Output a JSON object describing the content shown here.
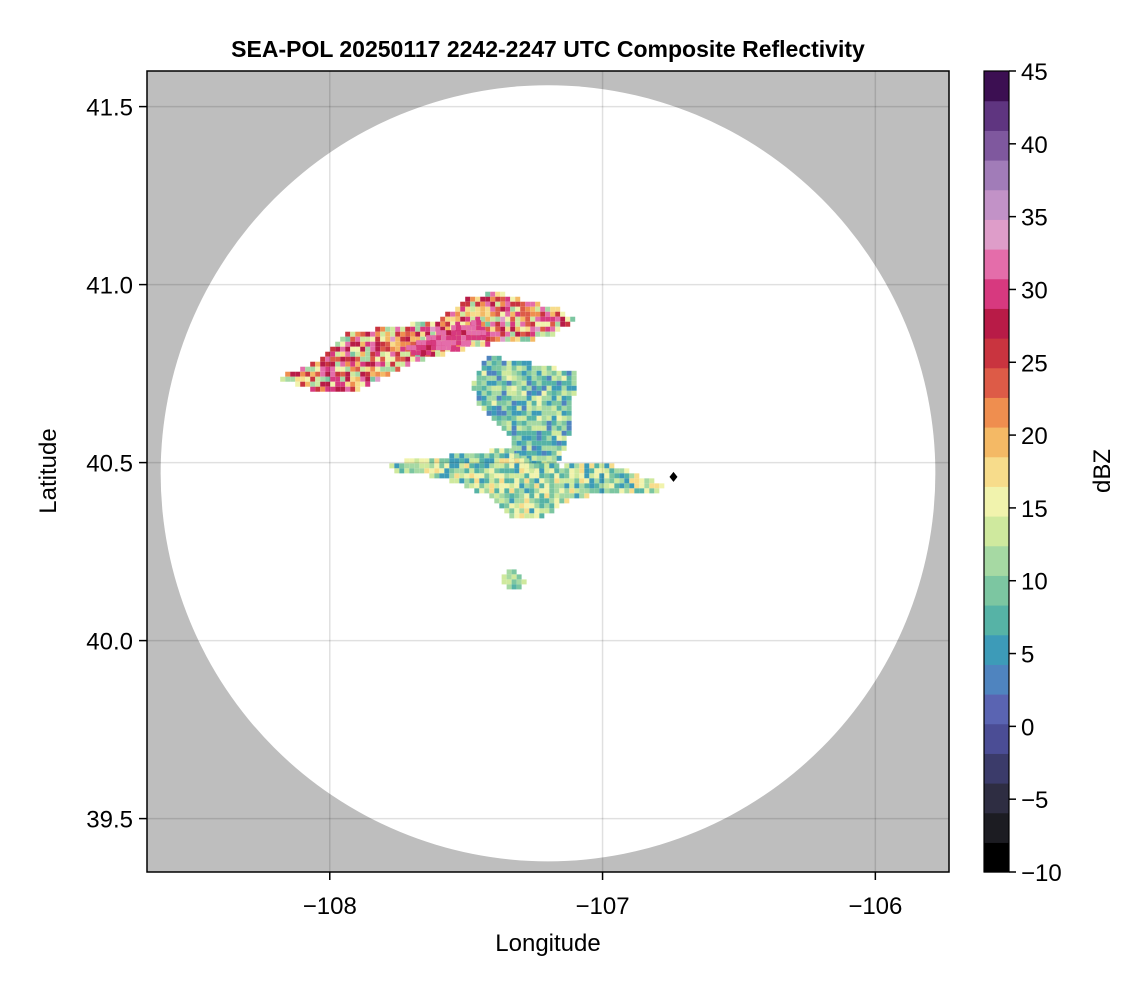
{
  "chart_data": {
    "type": "heatmap",
    "title": "SEA-POL 20250117 2242-2247 UTC Composite Reflectivity",
    "xlabel": "Longitude",
    "ylabel": "Latitude",
    "xlim": [
      -108.67,
      -105.73
    ],
    "ylim": [
      39.35,
      41.6
    ],
    "x_ticks": [
      -108,
      -107,
      -106
    ],
    "x_tick_labels": [
      "−108",
      "−107",
      "−106"
    ],
    "y_ticks": [
      39.5,
      40.0,
      40.5,
      41.0,
      41.5
    ],
    "y_tick_labels": [
      "39.5",
      "40.0",
      "40.5",
      "41.0",
      "41.5"
    ],
    "grid": true,
    "background_color": "#bebebe",
    "radar_coverage": {
      "center_lon": -107.2,
      "center_lat": 40.47,
      "radius_deg_lon": 1.42,
      "radius_deg_lat": 1.09,
      "fill": "#ffffff"
    },
    "radar_site": {
      "lon": -106.74,
      "lat": 40.46,
      "marker": "diamond",
      "color": "#000000"
    },
    "colorbar": {
      "label": "dBZ",
      "min": -10,
      "max": 45,
      "ticks": [
        -10,
        -5,
        0,
        5,
        10,
        15,
        20,
        25,
        30,
        35,
        40,
        45
      ],
      "tick_labels": [
        "−10",
        "−5",
        "0",
        "5",
        "10",
        "15",
        "20",
        "25",
        "30",
        "35",
        "40",
        "45"
      ],
      "step": 2,
      "colormap": [
        "#000000",
        "#1c1c22",
        "#2e2d42",
        "#3b3b6a",
        "#4b4d95",
        "#5a64b2",
        "#4f84bf",
        "#3d9bb8",
        "#56b3a6",
        "#7cc6a1",
        "#a6d9a3",
        "#cfe99e",
        "#f1f3ad",
        "#f7dc8b",
        "#f4b965",
        "#ef8e4f",
        "#dd5b47",
        "#c9343f",
        "#b81b47",
        "#d7397f",
        "#e46daa",
        "#de9dc9",
        "#c292c7",
        "#a17cb8",
        "#7f589e",
        "#5f3580",
        "#3c0f52"
      ]
    },
    "echo_regions": [
      {
        "name": "northern band",
        "dbz_range": [
          10,
          33
        ],
        "shape": [
          [
            -108.2,
            40.74
          ],
          [
            -108.05,
            40.78
          ],
          [
            -107.95,
            40.86
          ],
          [
            -107.8,
            40.88
          ],
          [
            -107.6,
            40.9
          ],
          [
            -107.5,
            40.96
          ],
          [
            -107.4,
            40.98
          ],
          [
            -107.25,
            40.95
          ],
          [
            -107.15,
            40.93
          ],
          [
            -107.1,
            40.9
          ],
          [
            -107.2,
            40.85
          ],
          [
            -107.35,
            40.84
          ],
          [
            -107.5,
            40.82
          ],
          [
            -107.7,
            40.78
          ],
          [
            -107.9,
            40.7
          ],
          [
            -108.05,
            40.7
          ]
        ]
      },
      {
        "name": "strong core",
        "dbz_range": [
          28,
          33
        ],
        "shape": [
          [
            -107.72,
            40.82
          ],
          [
            -107.6,
            40.87
          ],
          [
            -107.45,
            40.9
          ],
          [
            -107.42,
            40.85
          ],
          [
            -107.55,
            40.82
          ],
          [
            -107.68,
            40.8
          ]
        ]
      },
      {
        "name": "central cell",
        "dbz_range": [
          3,
          15
        ],
        "shape": [
          [
            -107.42,
            40.8
          ],
          [
            -107.35,
            40.79
          ],
          [
            -107.2,
            40.77
          ],
          [
            -107.1,
            40.75
          ],
          [
            -107.11,
            40.6
          ],
          [
            -107.17,
            40.48
          ],
          [
            -107.32,
            40.48
          ],
          [
            -107.34,
            40.58
          ],
          [
            -107.45,
            40.65
          ],
          [
            -107.48,
            40.72
          ]
        ]
      },
      {
        "name": "southern arm",
        "dbz_range": [
          5,
          18
        ],
        "shape": [
          [
            -107.78,
            40.5
          ],
          [
            -107.55,
            40.52
          ],
          [
            -107.35,
            40.54
          ],
          [
            -107.25,
            40.5
          ],
          [
            -107.15,
            40.49
          ],
          [
            -107.05,
            40.5
          ],
          [
            -106.95,
            40.49
          ],
          [
            -106.82,
            40.45
          ],
          [
            -106.76,
            40.43
          ],
          [
            -106.8,
            40.42
          ],
          [
            -106.95,
            40.42
          ],
          [
            -107.1,
            40.4
          ],
          [
            -107.22,
            40.35
          ],
          [
            -107.32,
            40.34
          ],
          [
            -107.4,
            40.4
          ],
          [
            -107.6,
            40.46
          ],
          [
            -107.8,
            40.48
          ]
        ]
      },
      {
        "name": "southern cells",
        "dbz_range": [
          8,
          14
        ],
        "shape": [
          [
            -107.35,
            40.2
          ],
          [
            -107.3,
            40.19
          ],
          [
            -107.28,
            40.16
          ],
          [
            -107.33,
            40.14
          ],
          [
            -107.37,
            40.17
          ]
        ]
      }
    ]
  }
}
